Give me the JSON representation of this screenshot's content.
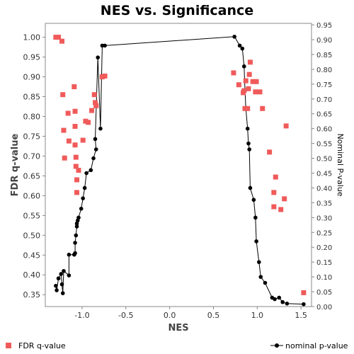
{
  "chart_data": {
    "type": "scatter",
    "title": "NES vs. Significance",
    "xlabel": "NES",
    "ylabel_left": "FDR q-value",
    "ylabel_right": "Nominal P-value",
    "xlim": [
      -1.42,
      1.62
    ],
    "ylim_left": [
      0.32,
      1.035
    ],
    "ylim_right": [
      0.0,
      0.955
    ],
    "x_ticks": [
      -1.0,
      -0.5,
      0.0,
      0.5,
      1.0,
      1.5
    ],
    "x_tick_labels": [
      "-1.0",
      "-0.5",
      "0.0",
      "0.5",
      "1.0",
      "1.5"
    ],
    "y_left_ticks": [
      0.35,
      0.4,
      0.45,
      0.5,
      0.55,
      0.6,
      0.65,
      0.7,
      0.75,
      0.8,
      0.85,
      0.9,
      0.95,
      1.0
    ],
    "y_left_tick_labels": [
      "0.35",
      "0.40",
      "0.45",
      "0.50",
      "0.55",
      "0.60",
      "0.65",
      "0.70",
      "0.75",
      "0.80",
      "0.85",
      "0.90",
      "0.95",
      "1.00"
    ],
    "y_right_ticks": [
      0.0,
      0.05,
      0.1,
      0.15,
      0.2,
      0.25,
      0.3,
      0.35,
      0.4,
      0.45,
      0.5,
      0.55,
      0.6,
      0.65,
      0.7,
      0.75,
      0.8,
      0.85,
      0.9,
      0.95
    ],
    "y_right_tick_labels": [
      "0.00",
      "0.05",
      "0.10",
      "0.15",
      "0.20",
      "0.25",
      "0.30",
      "0.35",
      "0.40",
      "0.45",
      "0.50",
      "0.55",
      "0.60",
      "0.65",
      "0.70",
      "0.75",
      "0.80",
      "0.85",
      "0.90",
      "0.95"
    ],
    "grid": false,
    "legend_position": "bottom",
    "series": [
      {
        "name": "FDR q-value",
        "axis": "left",
        "marker": "square",
        "color": "#f05a5a",
        "points": [
          [
            -1.3,
            1.0
          ],
          [
            -1.27,
            1.0
          ],
          [
            -1.23,
            0.99
          ],
          [
            -1.22,
            0.855
          ],
          [
            -1.21,
            0.765
          ],
          [
            -1.2,
            0.695
          ],
          [
            -1.16,
            0.808
          ],
          [
            -1.15,
            0.738
          ],
          [
            -1.09,
            0.875
          ],
          [
            -1.08,
            0.813
          ],
          [
            -1.08,
            0.775
          ],
          [
            -1.08,
            0.728
          ],
          [
            -1.07,
            0.697
          ],
          [
            -1.07,
            0.674
          ],
          [
            -1.06,
            0.64
          ],
          [
            -1.06,
            0.608
          ],
          [
            -1.04,
            0.664
          ],
          [
            -0.99,
            0.74
          ],
          [
            -0.96,
            0.788
          ],
          [
            -0.93,
            0.785
          ],
          [
            -0.89,
            0.815
          ],
          [
            -0.86,
            0.855
          ],
          [
            -0.85,
            0.835
          ],
          [
            -0.84,
            0.827
          ],
          [
            -0.77,
            0.9
          ],
          [
            -0.74,
            0.902
          ],
          [
            0.73,
            0.91
          ],
          [
            0.79,
            0.88
          ],
          [
            0.84,
            0.86
          ],
          [
            0.85,
            0.865
          ],
          [
            0.86,
            0.82
          ],
          [
            0.87,
            0.89
          ],
          [
            0.89,
            0.82
          ],
          [
            0.9,
            0.87
          ],
          [
            0.91,
            0.906
          ],
          [
            0.92,
            0.937
          ],
          [
            0.95,
            0.888
          ],
          [
            0.98,
            0.862
          ],
          [
            0.99,
            0.888
          ],
          [
            1.03,
            0.862
          ],
          [
            1.06,
            0.82
          ],
          [
            1.14,
            0.71
          ],
          [
            1.19,
            0.608
          ],
          [
            1.21,
            0.647
          ],
          [
            1.19,
            0.572
          ],
          [
            1.27,
            0.565
          ],
          [
            1.31,
            0.592
          ],
          [
            1.33,
            0.776
          ],
          [
            1.53,
            0.355
          ]
        ]
      },
      {
        "name": "nominal p-value",
        "axis": "right",
        "marker": "circle-line",
        "color": "#000000",
        "points": [
          [
            -1.3,
            0.07
          ],
          [
            -1.29,
            0.055
          ],
          [
            -1.27,
            0.095
          ],
          [
            -1.24,
            0.11
          ],
          [
            -1.23,
            0.075
          ],
          [
            -1.22,
            0.045
          ],
          [
            -1.21,
            0.12
          ],
          [
            -1.15,
            0.105
          ],
          [
            -1.15,
            0.175
          ],
          [
            -1.09,
            0.175
          ],
          [
            -1.08,
            0.18
          ],
          [
            -1.08,
            0.215
          ],
          [
            -1.07,
            0.24
          ],
          [
            -1.06,
            0.27
          ],
          [
            -1.06,
            0.28
          ],
          [
            -1.05,
            0.29
          ],
          [
            -1.04,
            0.3
          ],
          [
            -1.01,
            0.33
          ],
          [
            -0.99,
            0.365
          ],
          [
            -0.97,
            0.4
          ],
          [
            -0.95,
            0.45
          ],
          [
            -0.9,
            0.46
          ],
          [
            -0.87,
            0.5
          ],
          [
            -0.84,
            0.53
          ],
          [
            -0.85,
            0.565
          ],
          [
            -0.82,
            0.84
          ],
          [
            -0.79,
            0.6
          ],
          [
            -0.77,
            0.88
          ],
          [
            -0.74,
            0.88
          ],
          [
            0.74,
            0.91
          ],
          [
            0.8,
            0.88
          ],
          [
            0.83,
            0.87
          ],
          [
            0.85,
            0.81
          ],
          [
            0.86,
            0.73
          ],
          [
            0.87,
            0.67
          ],
          [
            0.89,
            0.6
          ],
          [
            0.9,
            0.55
          ],
          [
            0.91,
            0.53
          ],
          [
            0.92,
            0.4
          ],
          [
            0.96,
            0.36
          ],
          [
            0.98,
            0.3
          ],
          [
            0.99,
            0.22
          ],
          [
            1.02,
            0.15
          ],
          [
            1.04,
            0.1
          ],
          [
            1.09,
            0.08
          ],
          [
            1.17,
            0.03
          ],
          [
            1.2,
            0.025
          ],
          [
            1.25,
            0.03
          ],
          [
            1.29,
            0.015
          ],
          [
            1.34,
            0.01
          ],
          [
            1.53,
            0.008
          ]
        ]
      }
    ]
  }
}
